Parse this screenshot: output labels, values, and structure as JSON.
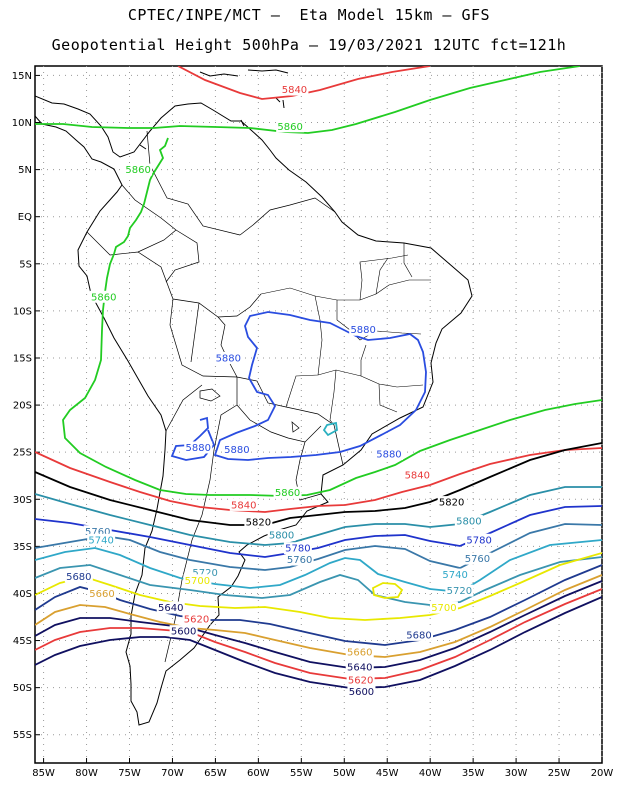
{
  "header": {
    "line1": "CPTEC/INPE/MCT –  Eta Model 15km – GFS",
    "line2": "Geopotential Height 500hPa – 19/03/2021 12UTC fct=121h"
  },
  "axes": {
    "lat_labels": [
      "15N",
      "10N",
      "5N",
      "EQ",
      "5S",
      "10S",
      "15S",
      "20S",
      "25S",
      "30S",
      "35S",
      "40S",
      "45S",
      "50S",
      "55S"
    ],
    "lon_labels": [
      "85W",
      "80W",
      "75W",
      "70W",
      "65W",
      "60W",
      "55W",
      "50W",
      "45W",
      "40W",
      "35W",
      "30W",
      "25W",
      "20W"
    ],
    "lon_range": [
      -86,
      -20
    ],
    "lat_range": [
      -58,
      16
    ],
    "grid": true
  },
  "contours": [
    {
      "level": 5840,
      "color": "#e83a3a"
    },
    {
      "level": 5860,
      "color": "#22cc22"
    },
    {
      "level": 5880,
      "color": "#2a4de0"
    },
    {
      "level": 5860,
      "color": "#22cc22"
    },
    {
      "level": 5840,
      "color": "#e83a3a"
    },
    {
      "level": 5820,
      "color": "#000000"
    },
    {
      "level": 5800,
      "color": "#2a8fa8"
    },
    {
      "level": 5780,
      "color": "#1f33cc"
    },
    {
      "level": 5760,
      "color": "#3a78a8"
    },
    {
      "level": 5740,
      "color": "#2fa8c8"
    },
    {
      "level": 5720,
      "color": "#3a95b0"
    },
    {
      "level": 5700,
      "color": "#e8e800"
    },
    {
      "level": 5680,
      "color": "#1f3a8f"
    },
    {
      "level": 5660,
      "color": "#d9a030"
    },
    {
      "level": 5640,
      "color": "#101060"
    },
    {
      "level": 5620,
      "color": "#e83a3a"
    },
    {
      "level": 5600,
      "color": "#101060"
    }
  ],
  "labels": [
    {
      "text": "5840",
      "lon": -55.8,
      "lat": 13.5,
      "color": "#e83a3a"
    },
    {
      "text": "5860",
      "lon": -56.3,
      "lat": 9.6,
      "color": "#22cc22"
    },
    {
      "text": "5860",
      "lon": -74.0,
      "lat": 5.0,
      "color": "#22cc22"
    },
    {
      "text": "5860",
      "lon": -78.0,
      "lat": -8.5,
      "color": "#22cc22"
    },
    {
      "text": "5880",
      "lon": -47.8,
      "lat": -12.0,
      "color": "#2a4de0"
    },
    {
      "text": "5880",
      "lon": -63.5,
      "lat": -15.0,
      "color": "#2a4de0"
    },
    {
      "text": "5880",
      "lon": -67.0,
      "lat": -24.5,
      "color": "#2a4de0"
    },
    {
      "text": "5880",
      "lon": -62.5,
      "lat": -24.7,
      "color": "#2a4de0"
    },
    {
      "text": "5880",
      "lon": -44.8,
      "lat": -25.2,
      "color": "#2a4de0"
    },
    {
      "text": "5860",
      "lon": -56.6,
      "lat": -29.3,
      "color": "#22cc22"
    },
    {
      "text": "5840",
      "lon": -41.5,
      "lat": -27.4,
      "color": "#e83a3a"
    },
    {
      "text": "5840",
      "lon": -61.7,
      "lat": -30.6,
      "color": "#e83a3a"
    },
    {
      "text": "5820",
      "lon": -37.5,
      "lat": -30.3,
      "color": "#000000"
    },
    {
      "text": "5820",
      "lon": -60.0,
      "lat": -32.4,
      "color": "#000000"
    },
    {
      "text": "5800",
      "lon": -35.5,
      "lat": -32.3,
      "color": "#2a8fa8"
    },
    {
      "text": "5800",
      "lon": -57.3,
      "lat": -33.8,
      "color": "#2a8fa8"
    },
    {
      "text": "5780",
      "lon": -34.3,
      "lat": -34.3,
      "color": "#1f33cc"
    },
    {
      "text": "5780",
      "lon": -55.4,
      "lat": -35.2,
      "color": "#1f33cc"
    },
    {
      "text": "5760",
      "lon": -34.5,
      "lat": -36.3,
      "color": "#3a78a8"
    },
    {
      "text": "5760",
      "lon": -55.2,
      "lat": -36.4,
      "color": "#3a78a8"
    },
    {
      "text": "5760",
      "lon": -78.7,
      "lat": -33.4,
      "color": "#3a78a8"
    },
    {
      "text": "5740",
      "lon": -78.3,
      "lat": -34.3,
      "color": "#2fa8c8"
    },
    {
      "text": "5740",
      "lon": -37.1,
      "lat": -38.0,
      "color": "#2fa8c8"
    },
    {
      "text": "5720",
      "lon": -66.2,
      "lat": -37.8,
      "color": "#3a95b0"
    },
    {
      "text": "5720",
      "lon": -36.6,
      "lat": -39.7,
      "color": "#3a95b0"
    },
    {
      "text": "5700",
      "lon": -67.1,
      "lat": -38.6,
      "color": "#e8e800"
    },
    {
      "text": "5700",
      "lon": -38.4,
      "lat": -41.5,
      "color": "#e8e800"
    },
    {
      "text": "5680",
      "lon": -80.9,
      "lat": -38.2,
      "color": "#1f3a8f"
    },
    {
      "text": "5680",
      "lon": -41.3,
      "lat": -44.4,
      "color": "#1f3a8f"
    },
    {
      "text": "5660",
      "lon": -78.2,
      "lat": -40.0,
      "color": "#d9a030"
    },
    {
      "text": "5660",
      "lon": -48.2,
      "lat": -46.2,
      "color": "#d9a030"
    },
    {
      "text": "5640",
      "lon": -70.2,
      "lat": -41.5,
      "color": "#101060"
    },
    {
      "text": "5640",
      "lon": -48.2,
      "lat": -47.8,
      "color": "#101060"
    },
    {
      "text": "5620",
      "lon": -67.2,
      "lat": -42.7,
      "color": "#e83a3a"
    },
    {
      "text": "5620",
      "lon": -48.1,
      "lat": -49.2,
      "color": "#e83a3a"
    },
    {
      "text": "5600",
      "lon": -68.7,
      "lat": -44.0,
      "color": "#101060"
    },
    {
      "text": "5600",
      "lon": -48.0,
      "lat": -50.4,
      "color": "#101060"
    }
  ]
}
